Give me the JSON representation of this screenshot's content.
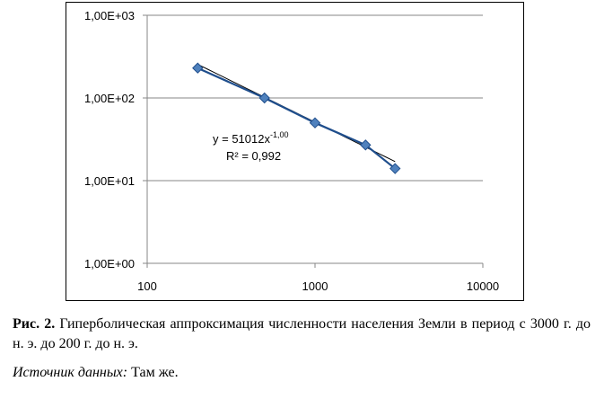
{
  "chart_data": {
    "type": "scatter",
    "x_scale": "log",
    "y_scale": "log",
    "xlim": [
      100,
      10000
    ],
    "ylim": [
      1,
      1000
    ],
    "x_ticks": [
      "100",
      "1000",
      "10000"
    ],
    "y_ticks": [
      "1,00E+00",
      "1,00E+01",
      "1,00E+02",
      "1,00E+03"
    ],
    "grid": "horizontal",
    "series": [
      {
        "x": [
          200,
          500,
          1000,
          2000,
          3000
        ],
        "y": [
          230,
          100,
          50,
          27,
          14
        ],
        "marker": "diamond",
        "color": "#4f81bd"
      }
    ],
    "trendline": {
      "type": "power",
      "a": 51012,
      "b": -1.0
    },
    "equation": {
      "prefix": "y = 51012x",
      "exponent": "-1,00"
    },
    "r_squared": "R² = 0,992"
  },
  "caption": {
    "figure_label": "Рис. 2.",
    "figure_text": " Гиперболическая аппроксимация численности населения Земли в период с 3000 г. до н. э. до 200 г. до н. э.",
    "source_label": "Источник данных:",
    "source_text": " Там же."
  },
  "colors": {
    "marker_fill": "#4f81bd",
    "line": "#1f4e8c",
    "grid": "#878787"
  }
}
